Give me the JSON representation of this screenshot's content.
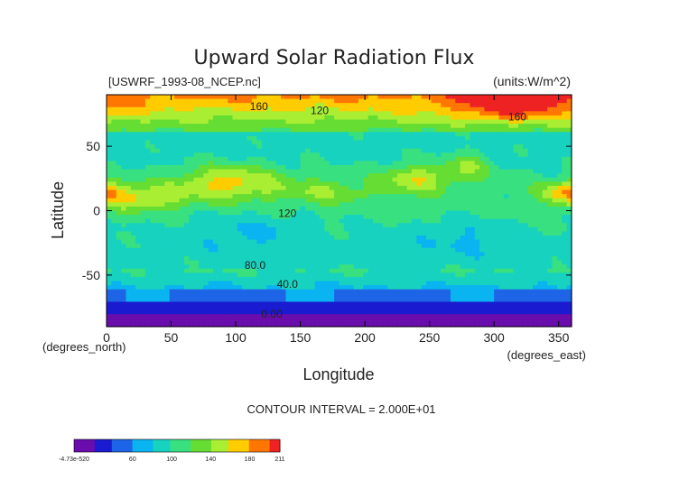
{
  "chart_data": {
    "type": "heatmap",
    "title": "Upward Solar Radiation Flux",
    "file_label": "[USWRF_1993-08_NCEP.nc]",
    "units_label": "(units:W/m^2)",
    "xlabel": "Longitude",
    "ylabel": "Latitude",
    "x_unit_label": "(degrees_east)",
    "y_unit_label": "(degrees_north)",
    "xlim": [
      0,
      360
    ],
    "ylim": [
      -90,
      90
    ],
    "x_ticks": [
      0,
      50,
      100,
      150,
      200,
      250,
      300,
      350
    ],
    "y_ticks": [
      -50,
      0,
      50
    ],
    "contour_interval": "CONTOUR INTERVAL = 2.000E+01",
    "contour_labels": [
      {
        "text": "160",
        "lon": 118,
        "lat": 78
      },
      {
        "text": "120",
        "lon": 165,
        "lat": 75
      },
      {
        "text": "160",
        "lon": 318,
        "lat": 70
      },
      {
        "text": "120",
        "lon": 140,
        "lat": -5
      },
      {
        "text": "80.0",
        "lon": 115,
        "lat": -45
      },
      {
        "text": "40.0",
        "lon": 140,
        "lat": -60
      },
      {
        "text": "0.00",
        "lon": 128,
        "lat": -83
      }
    ],
    "colorbar": {
      "tick_labels": [
        "-4.73e-520",
        "60",
        "100",
        "140",
        "180",
        "211"
      ],
      "tick_values": [
        0,
        60,
        100,
        140,
        180,
        211
      ],
      "min": 0,
      "max": 211
    },
    "levels": [
      0,
      20,
      40,
      60,
      80,
      100,
      120,
      140,
      160,
      180,
      200
    ],
    "colors": [
      "#6a0dad",
      "#1a1ad0",
      "#1e64e6",
      "#0ab4f0",
      "#18d2c0",
      "#38e080",
      "#66dd33",
      "#aaee33",
      "#ffcc00",
      "#ff7700",
      "#ee2222"
    ],
    "grid": false
  }
}
